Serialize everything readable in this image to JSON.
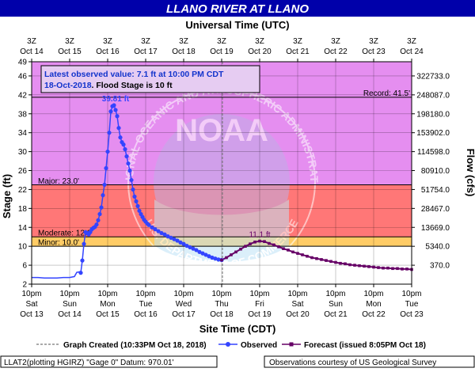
{
  "chart_data": {
    "type": "line",
    "title": "LLANO RIVER AT LLANO",
    "top_axis_title": "Universal Time (UTC)",
    "bottom_axis_title": "Site Time (CDT)",
    "y_left_label": "Stage (ft)",
    "y_right_label": "Flow (cfs)",
    "x_units": "hours since Oct 13 10pm CDT",
    "xlim": [
      0,
      240
    ],
    "ylim": [
      2,
      49
    ],
    "y_ticks": [
      2,
      6,
      10,
      14,
      18,
      22,
      26,
      30,
      34,
      38,
      42,
      46,
      49
    ],
    "top_ticks": [
      {
        "x": 0,
        "l1": "3Z",
        "l2": "Oct 14"
      },
      {
        "x": 24,
        "l1": "3Z",
        "l2": "Oct 15"
      },
      {
        "x": 48,
        "l1": "3Z",
        "l2": "Oct 16"
      },
      {
        "x": 72,
        "l1": "3Z",
        "l2": "Oct 17"
      },
      {
        "x": 96,
        "l1": "3Z",
        "l2": "Oct 18"
      },
      {
        "x": 120,
        "l1": "3Z",
        "l2": "Oct 19"
      },
      {
        "x": 144,
        "l1": "3Z",
        "l2": "Oct 20"
      },
      {
        "x": 168,
        "l1": "3Z",
        "l2": "Oct 21"
      },
      {
        "x": 192,
        "l1": "3Z",
        "l2": "Oct 22"
      },
      {
        "x": 216,
        "l1": "3Z",
        "l2": "Oct 23"
      },
      {
        "x": 240,
        "l1": "3Z",
        "l2": "Oct 24"
      }
    ],
    "bottom_ticks": [
      {
        "x": 0,
        "l1": "10pm",
        "l2": "Sat",
        "l3": "Oct 13"
      },
      {
        "x": 24,
        "l1": "10pm",
        "l2": "Sun",
        "l3": "Oct 14"
      },
      {
        "x": 48,
        "l1": "10pm",
        "l2": "Mon",
        "l3": "Oct 15"
      },
      {
        "x": 72,
        "l1": "10pm",
        "l2": "Tue",
        "l3": "Oct 16"
      },
      {
        "x": 96,
        "l1": "10pm",
        "l2": "Wed",
        "l3": "Oct 17"
      },
      {
        "x": 120,
        "l1": "10pm",
        "l2": "Thu",
        "l3": "Oct 18"
      },
      {
        "x": 144,
        "l1": "10pm",
        "l2": "Fri",
        "l3": "Oct 19"
      },
      {
        "x": 168,
        "l1": "10pm",
        "l2": "Sat",
        "l3": "Oct 20"
      },
      {
        "x": 192,
        "l1": "10pm",
        "l2": "Sun",
        "l3": "Oct 21"
      },
      {
        "x": 216,
        "l1": "10pm",
        "l2": "Mon",
        "l3": "Oct 22"
      },
      {
        "x": 240,
        "l1": "10pm",
        "l2": "Tue",
        "l3": "Oct 23"
      }
    ],
    "flow_ticks": [
      {
        "stage": 6,
        "label": "370.0"
      },
      {
        "stage": 10,
        "label": "5340.0"
      },
      {
        "stage": 14,
        "label": "13669.0"
      },
      {
        "stage": 18,
        "label": "28467.0"
      },
      {
        "stage": 22,
        "label": "51754.0"
      },
      {
        "stage": 26,
        "label": "80910.0"
      },
      {
        "stage": 30,
        "label": "114598.0"
      },
      {
        "stage": 34,
        "label": "153902.0"
      },
      {
        "stage": 38,
        "label": "198180.0"
      },
      {
        "stage": 42,
        "label": "248087.0"
      },
      {
        "stage": 46,
        "label": "322733.0"
      }
    ],
    "bands": [
      {
        "name": "Minor",
        "from": 10,
        "to": 12,
        "color": "#ffcc66"
      },
      {
        "name": "Moderate",
        "from": 12,
        "to": 23,
        "color": "#ff7777"
      },
      {
        "name": "Major",
        "from": 23,
        "to": 49,
        "color": "#e58ef0"
      }
    ],
    "thresholds": [
      {
        "label": "Minor: 10.0'",
        "value": 10
      },
      {
        "label": "Moderate: 12.0'",
        "value": 12
      },
      {
        "label": "Major: 23.0'",
        "value": 23
      },
      {
        "label": "Record: 41.5'",
        "value": 41.5
      }
    ],
    "graph_created_x": 120.5,
    "colors": {
      "observed": "#3344ff",
      "forecast": "#660066",
      "plot_bg": "#ffffff",
      "axis": "#000000"
    },
    "series": [
      {
        "name": "Observed",
        "points": [
          [
            0,
            3.4
          ],
          [
            4,
            3.4
          ],
          [
            8,
            3.3
          ],
          [
            12,
            3.3
          ],
          [
            16,
            3.3
          ],
          [
            20,
            3.4
          ],
          [
            24,
            3.4
          ],
          [
            27,
            3.6
          ],
          [
            28.5,
            4.5
          ],
          [
            30,
            4.6
          ],
          [
            31,
            4.4
          ],
          [
            32,
            7.0
          ],
          [
            33,
            10.5
          ],
          [
            34,
            13.0
          ],
          [
            35,
            12.8
          ],
          [
            36,
            12.5
          ],
          [
            37,
            13.0
          ],
          [
            38,
            13.6
          ],
          [
            39,
            13.9
          ],
          [
            40,
            14.1
          ],
          [
            41,
            14.6
          ],
          [
            42,
            15.5
          ],
          [
            43,
            16.8
          ],
          [
            44,
            18.2
          ],
          [
            45,
            20.8
          ],
          [
            46,
            23.0
          ],
          [
            47,
            26.5
          ],
          [
            48,
            30.0
          ],
          [
            49,
            34.0
          ],
          [
            50,
            38.5
          ],
          [
            51,
            39.6
          ],
          [
            52,
            39.8
          ],
          [
            53,
            38.8
          ],
          [
            54,
            37.5
          ],
          [
            55,
            35.0
          ],
          [
            56,
            33.0
          ],
          [
            57,
            32.0
          ],
          [
            58,
            31.5
          ],
          [
            59,
            30.5
          ],
          [
            60,
            29.0
          ],
          [
            61,
            27.5
          ],
          [
            62,
            26.0
          ],
          [
            63,
            24.0
          ],
          [
            64,
            22.0
          ],
          [
            65,
            20.5
          ],
          [
            66,
            19.5
          ],
          [
            67,
            18.5
          ],
          [
            68,
            17.5
          ],
          [
            69,
            16.8
          ],
          [
            70,
            16.2
          ],
          [
            71,
            15.6
          ],
          [
            72,
            15.2
          ],
          [
            73,
            14.8
          ],
          [
            74,
            14.5
          ],
          [
            76,
            14.0
          ],
          [
            78,
            13.6
          ],
          [
            80,
            13.2
          ],
          [
            82,
            12.8
          ],
          [
            84,
            12.5
          ],
          [
            86,
            12.1
          ],
          [
            88,
            11.8
          ],
          [
            90,
            11.5
          ],
          [
            92,
            11.2
          ],
          [
            94,
            10.8
          ],
          [
            96,
            10.5
          ],
          [
            98,
            10.1
          ],
          [
            100,
            9.8
          ],
          [
            102,
            9.5
          ],
          [
            104,
            9.2
          ],
          [
            106,
            8.8
          ],
          [
            108,
            8.5
          ],
          [
            110,
            8.2
          ],
          [
            112,
            7.9
          ],
          [
            114,
            7.6
          ],
          [
            116,
            7.4
          ],
          [
            118,
            7.2
          ],
          [
            120,
            7.1
          ]
        ]
      },
      {
        "name": "Forecast",
        "points": [
          [
            120,
            7.1
          ],
          [
            123,
            7.6
          ],
          [
            126,
            8.2
          ],
          [
            129,
            8.8
          ],
          [
            132,
            9.4
          ],
          [
            135,
            10.0
          ],
          [
            138,
            10.5
          ],
          [
            141,
            10.9
          ],
          [
            144,
            11.1
          ],
          [
            147,
            11.0
          ],
          [
            150,
            10.6
          ],
          [
            153,
            10.3
          ],
          [
            156,
            9.9
          ],
          [
            159,
            9.5
          ],
          [
            162,
            9.2
          ],
          [
            165,
            8.8
          ],
          [
            168,
            8.5
          ],
          [
            171,
            8.2
          ],
          [
            174,
            7.9
          ],
          [
            177,
            7.6
          ],
          [
            180,
            7.4
          ],
          [
            183,
            7.2
          ],
          [
            186,
            7.0
          ],
          [
            189,
            6.8
          ],
          [
            192,
            6.6
          ],
          [
            195,
            6.4
          ],
          [
            198,
            6.3
          ],
          [
            201,
            6.1
          ],
          [
            204,
            6.0
          ],
          [
            207,
            5.9
          ],
          [
            210,
            5.8
          ],
          [
            213,
            5.7
          ],
          [
            216,
            5.6
          ],
          [
            219,
            5.5
          ],
          [
            222,
            5.4
          ],
          [
            225,
            5.4
          ],
          [
            228,
            5.3
          ],
          [
            231,
            5.3
          ],
          [
            234,
            5.2
          ],
          [
            237,
            5.2
          ],
          [
            240,
            5.1
          ]
        ]
      }
    ],
    "annotations": {
      "crest": {
        "label": "39.81 ft",
        "x": 52,
        "y": 39.8
      },
      "forecast_crest": {
        "label": "11.1 ft",
        "x": 144,
        "y": 11.1
      }
    },
    "watermark": {
      "noaa": "NOAA",
      "dept": "U.S. DEPARTMENT OF COMMERCE",
      "admin": "NATIONAL OCEANIC AND ATMOSPHERIC ADMINISTRATION"
    }
  },
  "infobox": {
    "line1": "Latest observed value: 7.1 ft at 10:00 PM CDT",
    "line2_date": "18-Oct-2018",
    "line2_rest": ". Flood Stage is 10 ft"
  },
  "legend": {
    "created": "Graph Created (10:33PM Oct 18, 2018)",
    "observed": "Observed",
    "forecast": "Forecast (issued 8:05PM Oct 18)"
  },
  "footer": {
    "left": "LLAT2(plotting HGIRZ) \"Gage 0\" Datum: 970.01'",
    "right": "Observations courtesy of US Geological Survey"
  }
}
